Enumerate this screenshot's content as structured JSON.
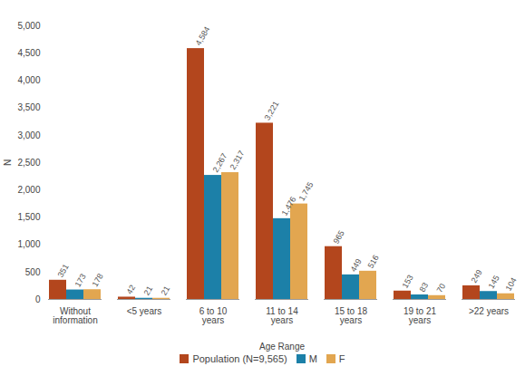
{
  "chart_data": {
    "type": "bar",
    "x_label": "Age Range",
    "y_label": "N",
    "categories": [
      "Without information",
      "<5 years",
      "6 to 10 years",
      "11 to 14 years",
      "15 to 18 years",
      "19 to 21 years",
      ">22 years"
    ],
    "series": [
      {
        "name": "Population (N=9,565)",
        "color": "#b3461d",
        "values": [
          351,
          42,
          4584,
          3221,
          965,
          153,
          249
        ],
        "value_labels": [
          "351",
          "42",
          "4,584",
          "3,221",
          "965",
          "153",
          "249"
        ]
      },
      {
        "name": "M",
        "color": "#1c80a8",
        "values": [
          173,
          21,
          2267,
          1476,
          449,
          83,
          145
        ],
        "value_labels": [
          "173",
          "21",
          "2,267",
          "1,476",
          "449",
          "83",
          "145"
        ]
      },
      {
        "name": "F",
        "color": "#e2a650",
        "values": [
          178,
          21,
          2317,
          1745,
          516,
          70,
          104
        ],
        "value_labels": [
          "178",
          "21",
          "2,317",
          "1,745",
          "516",
          "70",
          "104"
        ]
      }
    ],
    "ylim": [
      0,
      5000
    ],
    "yticks": [
      0,
      500,
      {
        "value": 1000,
        "label": "1,000"
      },
      {
        "value": 1500,
        "label": "1,500"
      },
      {
        "value": 2000,
        "label": "2,000"
      },
      {
        "value": 2500,
        "label": "2,500"
      },
      {
        "value": 3000,
        "label": "3,000"
      },
      {
        "value": 3500,
        "label": "3,500"
      },
      {
        "value": 4000,
        "label": "4,000"
      },
      {
        "value": 4500,
        "label": "4,500"
      },
      {
        "value": 5000,
        "label": "5,000"
      }
    ],
    "grid": false,
    "data_labels": true,
    "legend": "bottom"
  }
}
